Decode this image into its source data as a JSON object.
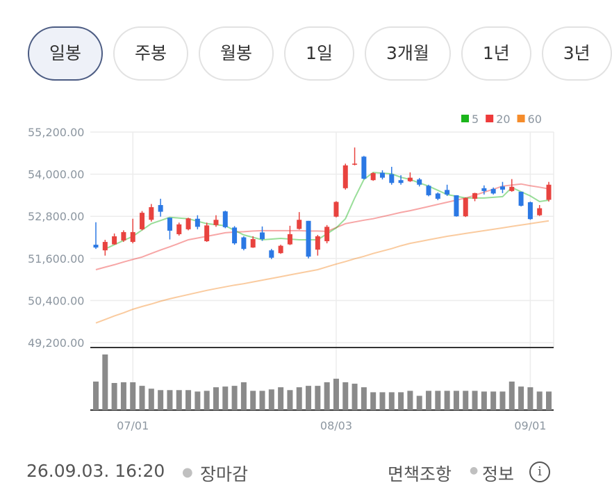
{
  "tabs": [
    {
      "label": "일봉",
      "selected": true
    },
    {
      "label": "주봉",
      "selected": false
    },
    {
      "label": "월봉",
      "selected": false
    },
    {
      "label": "1일",
      "selected": false
    },
    {
      "label": "3개월",
      "selected": false
    },
    {
      "label": "1년",
      "selected": false
    },
    {
      "label": "3년",
      "selected": false
    }
  ],
  "chart_data": {
    "type": "candlestick",
    "categories": [
      null,
      null,
      null,
      null,
      "07/01",
      null,
      null,
      null,
      null,
      null,
      null,
      null,
      null,
      null,
      null,
      null,
      null,
      null,
      null,
      null,
      null,
      null,
      null,
      null,
      null,
      null,
      "08/03",
      null,
      null,
      null,
      null,
      null,
      null,
      null,
      null,
      null,
      null,
      null,
      null,
      null,
      null,
      null,
      null,
      null,
      null,
      null,
      null,
      "09/01",
      null,
      null
    ],
    "open": [
      51990,
      51830,
      52000,
      52110,
      52070,
      52430,
      52700,
      53120,
      52760,
      52290,
      52430,
      52730,
      52090,
      52550,
      52940,
      52480,
      52200,
      51910,
      52340,
      51830,
      51750,
      52000,
      52440,
      52670,
      51850,
      52090,
      52790,
      53600,
      54270,
      54500,
      53830,
      54040,
      54000,
      53830,
      53800,
      53850,
      53670,
      53450,
      53550,
      53400,
      52800,
      53300,
      53600,
      53580,
      53650,
      53520,
      53500,
      53200,
      52830,
      53270
    ],
    "high": [
      52630,
      52130,
      52310,
      52400,
      52730,
      52950,
      53150,
      53300,
      52760,
      52620,
      52760,
      52830,
      52620,
      52830,
      52960,
      52520,
      52230,
      52230,
      52510,
      51870,
      51990,
      52530,
      52920,
      52670,
      52270,
      52550,
      53230,
      54300,
      54760,
      54520,
      54050,
      54110,
      54210,
      53970,
      54050,
      53890,
      53700,
      53480,
      53700,
      53400,
      53340,
      53470,
      53680,
      53620,
      53780,
      53860,
      53500,
      53220,
      53120,
      53780
    ],
    "low": [
      51870,
      51680,
      51990,
      52070,
      52030,
      52400,
      52650,
      52790,
      52140,
      52250,
      52400,
      52430,
      52070,
      52500,
      52460,
      51990,
      51830,
      51900,
      52100,
      51580,
      51730,
      51980,
      52420,
      51600,
      51680,
      52030,
      52770,
      53560,
      54250,
      53850,
      53810,
      53850,
      53700,
      53700,
      53780,
      53650,
      53370,
      53260,
      53380,
      52790,
      52780,
      53230,
      53420,
      53420,
      53460,
      53500,
      53080,
      52700,
      52810,
      53220
    ],
    "close": [
      51910,
      52070,
      52230,
      52350,
      52350,
      52900,
      53060,
      52930,
      52390,
      52570,
      52740,
      52500,
      52540,
      52700,
      52490,
      52030,
      51870,
      52150,
      52150,
      51620,
      51960,
      52290,
      52700,
      51650,
      52230,
      52500,
      53210,
      54250,
      54300,
      53870,
      54030,
      53900,
      53750,
      53750,
      53900,
      53700,
      53400,
      53300,
      53420,
      52800,
      53320,
      53460,
      53520,
      53450,
      53560,
      53640,
      53100,
      52720,
      53030,
      53700
    ],
    "volume": [
      40,
      78,
      38,
      39,
      39,
      34,
      30,
      28,
      28,
      28,
      28,
      26,
      27,
      32,
      33,
      34,
      39,
      27,
      27,
      29,
      32,
      28,
      32,
      34,
      34,
      39,
      44,
      39,
      37,
      32,
      25,
      25,
      25,
      25,
      27,
      20,
      27,
      27,
      27,
      27,
      27,
      27,
      26,
      26,
      26,
      40,
      33,
      32,
      26,
      26
    ],
    "up_color": "#e8433f",
    "down_color": "#2b78e4",
    "volume_color": "#8a8a8a",
    "series": [
      {
        "name": "5",
        "color": "#1cb51c",
        "values": [
          null,
          51870,
          51990,
          52110,
          52230,
          52410,
          52590,
          52680,
          52770,
          52750,
          52730,
          52660,
          52590,
          52560,
          52530,
          52400,
          52270,
          52200,
          52130,
          52150,
          52170,
          52150,
          52130,
          52130,
          52130,
          52300,
          52470,
          52730,
          53320,
          53850,
          54050,
          54030,
          54010,
          53910,
          53850,
          53750,
          53660,
          53540,
          53420,
          53370,
          53320,
          53320,
          53320,
          53340,
          53360,
          53620,
          53500,
          53380,
          53220,
          53260
        ]
      },
      {
        "name": "20",
        "color": "#ee3a3a",
        "values": [
          51280,
          51350,
          51420,
          51500,
          51570,
          51640,
          51740,
          51840,
          51930,
          52030,
          52130,
          52180,
          52230,
          52280,
          52330,
          52350,
          52360,
          52380,
          52390,
          52390,
          52390,
          52390,
          52390,
          52380,
          52380,
          52370,
          52480,
          52590,
          52640,
          52690,
          52730,
          52790,
          52850,
          52910,
          52960,
          53020,
          53080,
          53140,
          53200,
          53260,
          53320,
          53400,
          53490,
          53570,
          53660,
          53690,
          53720,
          53670,
          53630,
          53580
        ]
      },
      {
        "name": "60",
        "color": "#f58c2b",
        "values": [
          49760,
          49860,
          49960,
          50050,
          50150,
          50230,
          50300,
          50380,
          50450,
          50510,
          50570,
          50630,
          50690,
          50740,
          50790,
          50840,
          50880,
          50930,
          50980,
          51030,
          51080,
          51130,
          51180,
          51230,
          51280,
          51360,
          51440,
          51510,
          51590,
          51660,
          51740,
          51810,
          51880,
          51960,
          52030,
          52080,
          52130,
          52180,
          52230,
          52270,
          52310,
          52350,
          52390,
          52430,
          52470,
          52510,
          52550,
          52590,
          52630,
          52670
        ]
      }
    ],
    "ylim": [
      49200,
      55200
    ],
    "yticks": [
      {
        "value": 49200,
        "label": "49,200.00"
      },
      {
        "value": 50400,
        "label": "50,400.00"
      },
      {
        "value": 51600,
        "label": "51,600.00"
      },
      {
        "value": 52800,
        "label": "52,800.00"
      },
      {
        "value": 54000,
        "label": "54,000.00"
      },
      {
        "value": 55200,
        "label": "55,200.00"
      }
    ],
    "grid": true
  },
  "footer": {
    "timestamp": "26.09.03. 16:20",
    "status": "장마감",
    "disclaimer": "면책조항",
    "info": "정보"
  }
}
